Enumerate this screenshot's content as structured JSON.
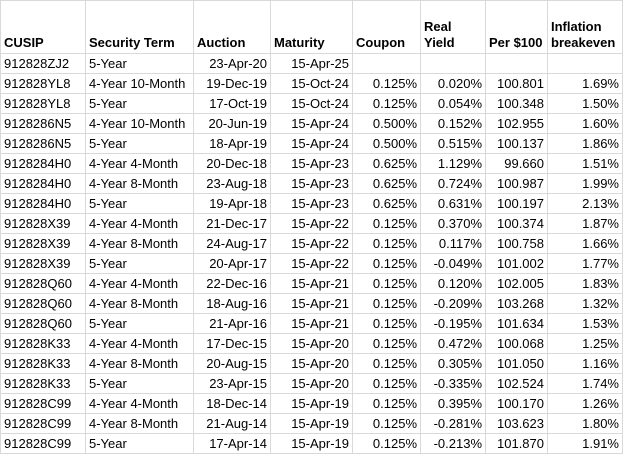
{
  "table": {
    "header": [
      [
        "CUSIP"
      ],
      [
        "Security Term"
      ],
      [
        "Auction"
      ],
      [
        "Maturity"
      ],
      [
        "Coupon"
      ],
      [
        "Real",
        "Yield"
      ],
      [
        "Per $100"
      ],
      [
        "Inflation",
        "breakeven"
      ]
    ],
    "rows": [
      [
        "912828ZJ2",
        "5-Year",
        "23-Apr-20",
        "15-Apr-25",
        null,
        null,
        null,
        null
      ],
      [
        "912828YL8",
        "4-Year 10-Month",
        "19-Dec-19",
        "15-Oct-24",
        "0.125%",
        "0.020%",
        "100.801",
        "1.69%"
      ],
      [
        "912828YL8",
        "5-Year",
        "17-Oct-19",
        "15-Oct-24",
        "0.125%",
        "0.054%",
        "100.348",
        "1.50%"
      ],
      [
        "9128286N5",
        "4-Year 10-Month",
        "20-Jun-19",
        "15-Apr-24",
        "0.500%",
        "0.152%",
        "102.955",
        "1.60%"
      ],
      [
        "9128286N5",
        "5-Year",
        "18-Apr-19",
        "15-Apr-24",
        "0.500%",
        "0.515%",
        "100.137",
        "1.86%"
      ],
      [
        "9128284H0",
        "4-Year 4-Month",
        "20-Dec-18",
        "15-Apr-23",
        "0.625%",
        "1.129%",
        "99.660",
        "1.51%"
      ],
      [
        "9128284H0",
        "4-Year 8-Month",
        "23-Aug-18",
        "15-Apr-23",
        "0.625%",
        "0.724%",
        "100.987",
        "1.99%"
      ],
      [
        "9128284H0",
        "5-Year",
        "19-Apr-18",
        "15-Apr-23",
        "0.625%",
        "0.631%",
        "100.197",
        "2.13%"
      ],
      [
        "912828X39",
        "4-Year 4-Month",
        "21-Dec-17",
        "15-Apr-22",
        "0.125%",
        "0.370%",
        "100.374",
        "1.87%"
      ],
      [
        "912828X39",
        "4-Year 8-Month",
        "24-Aug-17",
        "15-Apr-22",
        "0.125%",
        "0.117%",
        "100.758",
        "1.66%"
      ],
      [
        "912828X39",
        "5-Year",
        "20-Apr-17",
        "15-Apr-22",
        "0.125%",
        "-0.049%",
        "101.002",
        "1.77%"
      ],
      [
        "912828Q60",
        "4-Year 4-Month",
        "22-Dec-16",
        "15-Apr-21",
        "0.125%",
        "0.120%",
        "102.005",
        "1.83%"
      ],
      [
        "912828Q60",
        "4-Year 8-Month",
        "18-Aug-16",
        "15-Apr-21",
        "0.125%",
        "-0.209%",
        "103.268",
        "1.32%"
      ],
      [
        "912828Q60",
        "5-Year",
        "21-Apr-16",
        "15-Apr-21",
        "0.125%",
        "-0.195%",
        "101.634",
        "1.53%"
      ],
      [
        "912828K33",
        "4-Year 4-Month",
        "17-Dec-15",
        "15-Apr-20",
        "0.125%",
        "0.472%",
        "100.068",
        "1.25%"
      ],
      [
        "912828K33",
        "4-Year 8-Month",
        "20-Aug-15",
        "15-Apr-20",
        "0.125%",
        "0.305%",
        "101.050",
        "1.16%"
      ],
      [
        "912828K33",
        "5-Year",
        "23-Apr-15",
        "15-Apr-20",
        "0.125%",
        "-0.335%",
        "102.524",
        "1.74%"
      ],
      [
        "912828C99",
        "4-Year 4-Month",
        "18-Dec-14",
        "15-Apr-19",
        "0.125%",
        "0.395%",
        "100.170",
        "1.26%"
      ],
      [
        "912828C99",
        "4-Year 8-Month",
        "21-Aug-14",
        "15-Apr-19",
        "0.125%",
        "-0.281%",
        "103.623",
        "1.80%"
      ],
      [
        "912828C99",
        "5-Year",
        "17-Apr-14",
        "15-Apr-19",
        "0.125%",
        "-0.213%",
        "101.870",
        "1.91%"
      ]
    ]
  }
}
